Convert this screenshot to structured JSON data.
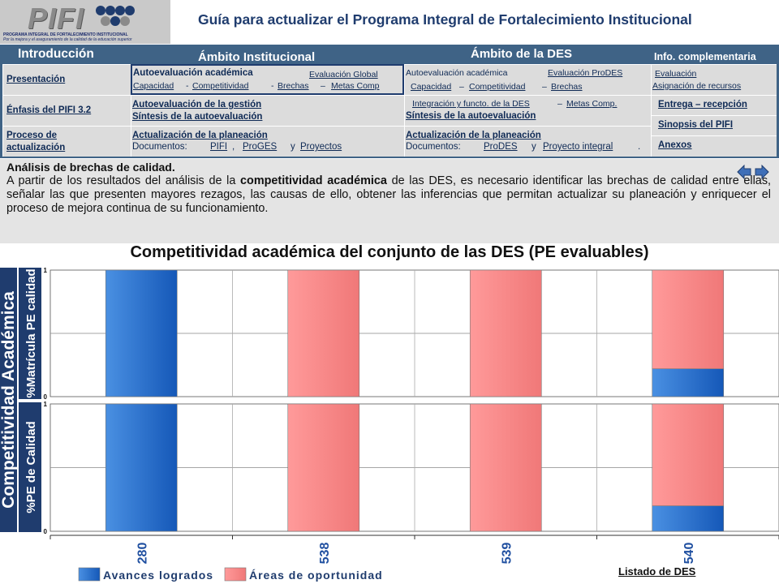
{
  "header": {
    "logo": "PIFI",
    "logo_sub_1": "PROGRAMA INTEGRAL DE FORTALECIMIENTO INSTITUCIONAL",
    "logo_sub_2": "Por la mejora y el aseguramiento de la calidad de la educación superior",
    "title": "Guía para actualizar el Programa Integral de Fortalecimiento Institucional"
  },
  "nav": {
    "col_intro": "Introducción",
    "col_inst": "Ámbito Institucional",
    "col_des": "Ámbito de la DES",
    "col_info": "Info. complementaria",
    "presentacion": "Presentación",
    "enfasis": "Énfasis del PIFI 3.2",
    "proceso_1": "Proceso de",
    "proceso_2": "actualización",
    "inst_autoeval": "Autoevaluación académica",
    "inst_eval_global": "Evaluación Global",
    "inst_capacidad": "Capacidad",
    "inst_competitividad": "Competitividad",
    "inst_brechas": "Brechas",
    "inst_metas": "Metas Comp",
    "inst_gestion": "Autoevaluación de la gestión",
    "inst_sintesis": "Síntesis de la autoevaluación",
    "inst_actualizacion": "Actualización de la planeación",
    "inst_documentos": "Documentos:",
    "inst_doc_pifi": "PIFI",
    "inst_doc_proges": "ProGES",
    "inst_y": "y",
    "inst_doc_proyectos": "Proyectos",
    "des_autoeval": "Autoevaluación académica",
    "des_eval_prodes": "Evaluación ProDES",
    "des_capacidad": "Capacidad",
    "des_competitividad": "Competitividad",
    "des_brechas": "Brechas",
    "des_integracion": "Integración y functo. de la DES",
    "des_metas": "Metas Comp.",
    "des_sintesis": "Síntesis de la autoevaluación",
    "des_actualizacion": "Actualización de la planeación",
    "des_documentos": "Documentos:",
    "des_doc_prodes": "ProDES",
    "des_y": "y",
    "des_doc_proyecto": "Proyecto integral",
    "info_evaluacion": "Evaluación",
    "info_asignacion": "Asignación de recursos",
    "info_entrega": "Entrega – recepción",
    "info_sinopsis": "Sinopsis del PIFI",
    "info_anexos": "Anexos"
  },
  "description": {
    "title": "Análisis de brechas de calidad.",
    "body_1": "A partir de los resultados del análisis de la ",
    "body_bold": "competitividad académica",
    "body_2": " de las DES, es necesario identificar las brechas de calidad entre ellas, señalar las que presenten mayores rezagos, las causas de ello, obtener las inferencias que permitan actualizar su planeación y enriquecer el proceso de mejora continua de su funcionamiento."
  },
  "footer": {
    "listado": "Listado de DES"
  },
  "colors": {
    "avances": "#1f6fd0",
    "areas": "#f58c8c",
    "nav_bg": "#3f6386",
    "title": "#1f3c6e"
  },
  "chart_data": {
    "type": "bar",
    "stacked": true,
    "title": "Competitividad académica del conjunto de las DES (PE evaluables)",
    "group_label": "Competitividad Académica",
    "categories": [
      "280",
      "538",
      "539",
      "540"
    ],
    "panels": [
      {
        "ylabel": "%Matrícula PE calidad",
        "ylim": [
          0,
          1
        ],
        "yticks": [
          "0",
          "1"
        ],
        "series": [
          {
            "name": "Avances logrados",
            "values": [
              1,
              0,
              0,
              0.22
            ]
          },
          {
            "name": "Áreas de oportunidad",
            "values": [
              0,
              1,
              1,
              0.78
            ]
          }
        ]
      },
      {
        "ylabel": "%PE de Calidad",
        "ylim": [
          0,
          1
        ],
        "yticks": [
          "0",
          "1"
        ],
        "series": [
          {
            "name": "Avances logrados",
            "values": [
              1,
              0,
              0,
              0.2
            ]
          },
          {
            "name": "Áreas de oportunidad",
            "values": [
              0,
              1,
              1,
              0.8
            ]
          }
        ]
      }
    ],
    "legend": [
      "Avances logrados",
      "Áreas de oportunidad"
    ],
    "legend_position": "bottom-left",
    "grid": true
  }
}
